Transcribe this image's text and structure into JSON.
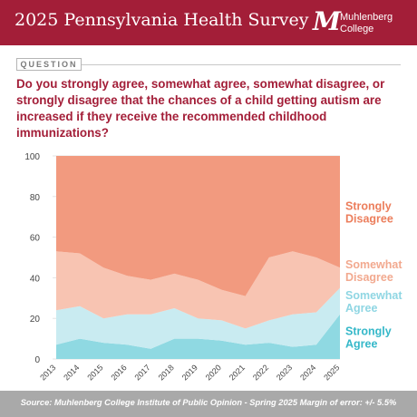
{
  "header": {
    "title": "2025 Pennsylvania Health Survey",
    "logo_line1": "Muhlenberg",
    "logo_line2": "College",
    "logo_mark": "M",
    "bg_color": "#a31e38"
  },
  "question": {
    "tag": "QUESTION",
    "text": "Do you strongly agree, somewhat agree, somewhat disagree, or strongly disagree that the chances of a child getting autism are increased if they receive the recommended childhood immunizations?"
  },
  "chart_data": {
    "type": "area",
    "stacked": true,
    "x": [
      "2013",
      "2014",
      "2015",
      "2016",
      "2017",
      "2018",
      "2019",
      "2020",
      "2021",
      "2022",
      "2023",
      "2024",
      "2025"
    ],
    "ylim": [
      0,
      100
    ],
    "yticks": [
      0,
      20,
      40,
      60,
      80,
      100
    ],
    "grid": true,
    "series": [
      {
        "name": "Strongly Agree",
        "color": "#8fd9e2",
        "label_color": "#35b8c9",
        "values": [
          7,
          10,
          8,
          7,
          5,
          10,
          10,
          9,
          7,
          8,
          6,
          7,
          22
        ]
      },
      {
        "name": "Somewhat Agree",
        "color": "#c9ebf1",
        "label_color": "#8fd6e3",
        "values": [
          17,
          16,
          12,
          15,
          17,
          15,
          10,
          10,
          8,
          11,
          16,
          16,
          13
        ]
      },
      {
        "name": "Somewhat Disagree",
        "color": "#f8c4b2",
        "label_color": "#f2a98f",
        "values": [
          29,
          26,
          25,
          19,
          17,
          17,
          19,
          15,
          16,
          31,
          31,
          27,
          10
        ]
      },
      {
        "name": "Strongly Disagree",
        "color": "#f29a7f",
        "label_color": "#ec7e5c",
        "values": [
          47,
          48,
          55,
          59,
          61,
          58,
          61,
          66,
          69,
          50,
          47,
          50,
          55
        ]
      }
    ]
  },
  "footer": {
    "text": "Source: Muhlenberg College Institute of Public Opinion - Spring 2025 Margin of error: +/- 5.5%"
  }
}
